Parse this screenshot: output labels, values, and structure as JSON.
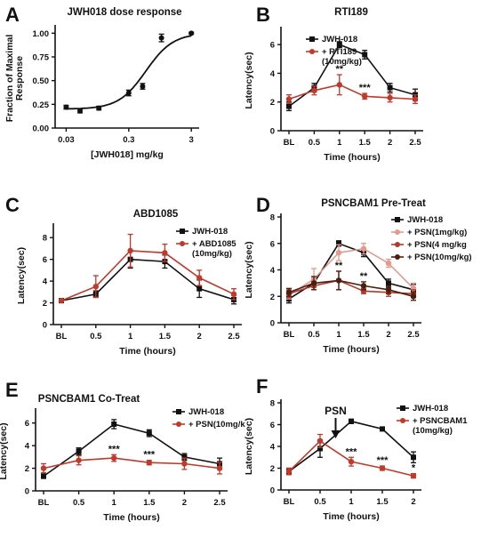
{
  "chart_data": [
    {
      "panel": "A",
      "type": "scatter",
      "title": "JWH018 dose response",
      "xlabel": "[JWH018] mg/kg",
      "ylabel": "Fraction of Maximal Response",
      "x_scale": "log",
      "xlim": [
        0.02,
        4
      ],
      "ylim": [
        0,
        1.05
      ],
      "x_ticks": [
        0.03,
        0.3,
        3
      ],
      "x_tick_labels": [
        "0.03",
        "0.3",
        "3"
      ],
      "y_ticks": [
        0,
        0.25,
        0.5,
        0.75,
        1
      ],
      "y_tick_labels": [
        "0.00",
        "0.25",
        "0.50",
        "0.75",
        "1.00"
      ],
      "series": [
        {
          "color": "#111111",
          "x": [
            0.03,
            0.05,
            0.1,
            0.3,
            0.5,
            1.0,
            3.0
          ],
          "y": [
            0.22,
            0.18,
            0.21,
            0.37,
            0.44,
            0.95,
            1.0
          ],
          "err": [
            0.02,
            0.02,
            0.02,
            0.03,
            0.03,
            0.04,
            0.01
          ]
        }
      ],
      "fit": {
        "type": "sigmoid",
        "bottom": 0.2,
        "top": 1.0,
        "log_ec50": -0.25,
        "hill": 2.0
      }
    },
    {
      "panel": "B",
      "type": "line",
      "title": "RTI189",
      "xlabel": "Time (hours)",
      "ylabel": "Latency(sec)",
      "categories": [
        "BL",
        "0.5",
        "1",
        "1.5",
        "2",
        "2.5"
      ],
      "ylim": [
        0,
        7
      ],
      "y_ticks": [
        0,
        2,
        4,
        6
      ],
      "series": [
        {
          "name": "JWH-018",
          "color": "#111111",
          "values": [
            1.7,
            3.0,
            6.0,
            5.3,
            3.0,
            2.5
          ],
          "err": [
            0.3,
            0.3,
            0.2,
            0.3,
            0.3,
            0.4
          ]
        },
        {
          "name": "+ RTI189 (10mg/kg)",
          "color": "#c0392b",
          "values": [
            2.2,
            2.8,
            3.2,
            2.4,
            2.3,
            2.2
          ],
          "err": [
            0.3,
            0.3,
            0.7,
            0.2,
            0.3,
            0.3
          ]
        }
      ],
      "annotations": [
        {
          "x": "1",
          "text": "**"
        },
        {
          "x": "1.5",
          "text": "***"
        }
      ]
    },
    {
      "panel": "C",
      "type": "line",
      "title": "ABD1085",
      "xlabel": "Time (hours)",
      "ylabel": "Latency(sec)",
      "categories": [
        "BL",
        "0.5",
        "1",
        "1.5",
        "2",
        "2.5"
      ],
      "ylim": [
        0,
        9
      ],
      "y_ticks": [
        0,
        2,
        4,
        6,
        8
      ],
      "series": [
        {
          "name": "JWH-018",
          "color": "#111111",
          "values": [
            2.2,
            2.8,
            6.0,
            5.8,
            3.3,
            2.3
          ],
          "err": [
            0.1,
            0.3,
            0.8,
            0.6,
            0.8,
            0.4
          ]
        },
        {
          "name": "+ ABD1085 (10mg/kg)",
          "color": "#c0392b",
          "values": [
            2.2,
            3.5,
            6.8,
            6.6,
            4.3,
            2.8
          ],
          "err": [
            0.1,
            1.0,
            1.5,
            0.8,
            0.7,
            0.5
          ]
        }
      ]
    },
    {
      "panel": "D",
      "type": "line",
      "title": "PSNCBAM1 Pre-Treat",
      "xlabel": "Time (hours)",
      "ylabel": "Latency(sec)",
      "categories": [
        "BL",
        "0.5",
        "1",
        "1.5",
        "2",
        "2.5"
      ],
      "ylim": [
        0,
        8
      ],
      "y_ticks": [
        0,
        2,
        4,
        6,
        8
      ],
      "series": [
        {
          "name": "JWH-018",
          "color": "#111111",
          "values": [
            1.8,
            3.0,
            6.0,
            5.3,
            3.0,
            2.5
          ],
          "err": [
            0.3,
            0.3,
            0.2,
            0.3,
            0.3,
            0.4
          ]
        },
        {
          "name": "+ PSN(1mg/kg)",
          "color": "#e39a8e",
          "values": [
            2.1,
            3.3,
            5.3,
            5.6,
            4.5,
            2.6
          ],
          "err": [
            0.3,
            0.8,
            0.6,
            0.4,
            0.3,
            0.4
          ]
        },
        {
          "name": "+ PSN(4 mg/kg",
          "color": "#b03a2e",
          "values": [
            2.2,
            2.8,
            3.2,
            2.4,
            2.3,
            2.2
          ],
          "err": [
            0.3,
            0.3,
            0.7,
            0.2,
            0.3,
            0.3
          ]
        },
        {
          "name": "+ PSN(10mg/kg)",
          "color": "#4a1f10",
          "values": [
            2.3,
            3.0,
            3.2,
            2.8,
            2.5,
            2.0
          ],
          "err": [
            0.3,
            0.5,
            0.7,
            0.3,
            0.3,
            0.3
          ]
        }
      ],
      "annotations": [
        {
          "x": "1",
          "text": "**"
        },
        {
          "x": "1.5",
          "text": "**"
        }
      ]
    },
    {
      "panel": "E",
      "type": "line",
      "title": "PSNCBAM1 Co-Treat",
      "xlabel": "Time (hours)",
      "ylabel": "Latency(sec)",
      "categories": [
        "BL",
        "0.5",
        "1",
        "1.5",
        "2",
        "2.5"
      ],
      "ylim": [
        0,
        7
      ],
      "y_ticks": [
        0,
        2,
        4,
        6
      ],
      "series": [
        {
          "name": "JWH-018",
          "color": "#111111",
          "values": [
            1.3,
            3.5,
            5.9,
            5.1,
            3.0,
            2.4
          ],
          "err": [
            0.2,
            0.3,
            0.4,
            0.3,
            0.3,
            0.5
          ]
        },
        {
          "name": "+ PSN(10mg/k",
          "color": "#c0392b",
          "values": [
            2.0,
            2.7,
            2.9,
            2.5,
            2.4,
            2.0
          ],
          "err": [
            0.4,
            0.4,
            0.3,
            0.2,
            0.5,
            0.5
          ]
        }
      ],
      "annotations": [
        {
          "x": "1",
          "text": "***"
        },
        {
          "x": "1.5",
          "text": "***"
        }
      ]
    },
    {
      "panel": "F",
      "type": "line",
      "title": "",
      "xlabel": "Time (hours)",
      "ylabel": "Latency(sec)",
      "categories": [
        "BL",
        "0.5",
        "1",
        "1.5",
        "2"
      ],
      "ylim": [
        0,
        8
      ],
      "y_ticks": [
        0,
        2,
        4,
        6,
        8
      ],
      "series": [
        {
          "name": "JWH-018",
          "color": "#111111",
          "values": [
            1.7,
            3.8,
            6.3,
            5.6,
            3.0
          ],
          "err": [
            0.3,
            0.8,
            0.2,
            0.1,
            0.5
          ]
        },
        {
          "name": "+ PSNCBAM1 (10mg/kg)",
          "color": "#c0392b",
          "values": [
            1.7,
            4.5,
            2.6,
            2.0,
            1.3
          ],
          "err": [
            0.3,
            0.6,
            0.4,
            0.2,
            0.2
          ]
        }
      ],
      "annotations": [
        {
          "x": "1",
          "text": "***"
        },
        {
          "x": "1.5",
          "text": "***"
        },
        {
          "x": "2",
          "text": "*"
        }
      ],
      "marker_text": "PSN",
      "marker_at": "0.75"
    }
  ]
}
